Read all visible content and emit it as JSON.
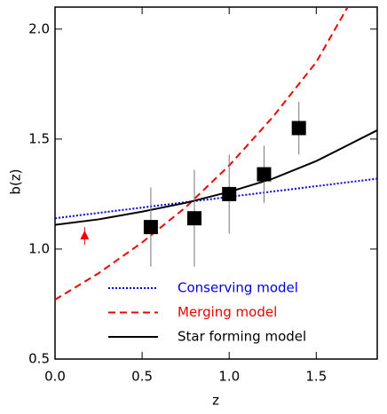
{
  "chart_data": {
    "type": "line",
    "xlabel": "z",
    "ylabel": "b(z)",
    "xlim": [
      0,
      1.85
    ],
    "ylim": [
      0.5,
      2.1
    ],
    "xticks": [
      {
        "value": 0,
        "label": "0.0"
      },
      {
        "value": 0.5,
        "label": "0.5"
      },
      {
        "value": 1,
        "label": "1.0"
      },
      {
        "value": 1.5,
        "label": "1.5"
      }
    ],
    "yticks": [
      {
        "value": 0.5,
        "label": "0.5"
      },
      {
        "value": 1,
        "label": "1.0"
      },
      {
        "value": 1.5,
        "label": "1.5"
      },
      {
        "value": 2,
        "label": "2.0"
      }
    ],
    "series": [
      {
        "name": "Conserving model",
        "color": "#0000dd",
        "dash": "dotted",
        "x": [
          0,
          1.85
        ],
        "values": [
          1.14,
          1.32
        ]
      },
      {
        "name": "Merging model",
        "color": "#ee0000",
        "dash": "dashed",
        "x": [
          0,
          0.25,
          0.5,
          0.75,
          1.0,
          1.25,
          1.5,
          1.68
        ],
        "values": [
          0.77,
          0.89,
          1.03,
          1.19,
          1.38,
          1.6,
          1.85,
          2.1
        ]
      },
      {
        "name": "Star forming model",
        "color": "#000000",
        "dash": "solid",
        "x": [
          0,
          0.25,
          0.5,
          0.75,
          1.0,
          1.25,
          1.5,
          1.85
        ],
        "values": [
          1.11,
          1.135,
          1.17,
          1.21,
          1.26,
          1.32,
          1.4,
          1.54
        ]
      }
    ],
    "points": [
      {
        "marker": "square",
        "color": "#000000",
        "x": [
          0.55,
          0.8,
          1.0,
          1.2,
          1.4
        ],
        "values": [
          1.1,
          1.14,
          1.25,
          1.34,
          1.55
        ],
        "errors": [
          0.18,
          0.22,
          0.18,
          0.13,
          0.12
        ]
      },
      {
        "marker": "triangle",
        "color": "#ee0000",
        "x": [
          0.17
        ],
        "values": [
          1.06
        ],
        "errors": [
          0.04
        ]
      }
    ]
  }
}
